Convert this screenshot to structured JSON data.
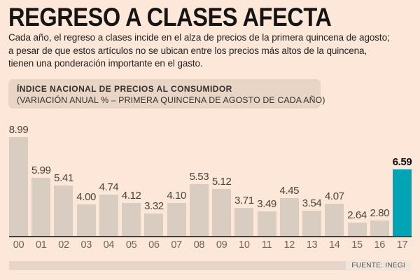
{
  "page": {
    "background": "#fce7d8"
  },
  "header": {
    "title": "REGRESO A CLASES AFECTA",
    "body_lines": [
      "Cada año, el regreso a clases incide en el alza de precios de la primera quincena de agosto;",
      "a pesar de que estos artículos no se ubican entre los precios más altos de la quincena,",
      "tienen una ponderación importante en el gasto."
    ]
  },
  "chart_header": {
    "line1": "ÍNDICE NACIONAL DE PRECIOS AL CONSUMIDOR",
    "line2": "(VARIACIÓN ANUAL % –  PRIMERA QUINCENA DE AGOSTO DE CADA AÑO)"
  },
  "chart_data": {
    "type": "bar",
    "title": "ÍNDICE NACIONAL DE PRECIOS AL CONSUMIDOR",
    "subtitle": "(VARIACIÓN ANUAL % – PRIMERA QUINCENA DE AGOSTO DE CADA AÑO)",
    "categories": [
      "00",
      "01",
      "02",
      "03",
      "04",
      "05",
      "06",
      "07",
      "08",
      "09",
      "10",
      "11",
      "12",
      "13",
      "14",
      "15",
      "16",
      "17"
    ],
    "values": [
      8.99,
      5.99,
      5.41,
      4.0,
      4.74,
      4.12,
      3.32,
      4.1,
      5.53,
      5.12,
      3.71,
      3.49,
      4.45,
      3.54,
      4.07,
      2.64,
      2.8,
      6.59
    ],
    "value_labels": [
      "8.99",
      "5.99",
      "5.41",
      "4.00",
      "4.74",
      "4.12",
      "3.32",
      "4.10",
      "5.53",
      "5.12",
      "3.71",
      "3.49",
      "4.45",
      "3.54",
      "4.07",
      "2.64",
      "2.80",
      "6.59"
    ],
    "highlight_index": 17,
    "bar_color": "#d9ccc1",
    "highlight_color": "#00a4b4",
    "value_label_color": "#4a433c",
    "highlight_label_color": "#0e0d0c",
    "axis_color": "#45403a",
    "baseline_value": 1.65,
    "grid": false,
    "legend": false,
    "xlabel": "",
    "ylabel": ""
  },
  "footer": {
    "source": "FUENTE: INEGI"
  }
}
